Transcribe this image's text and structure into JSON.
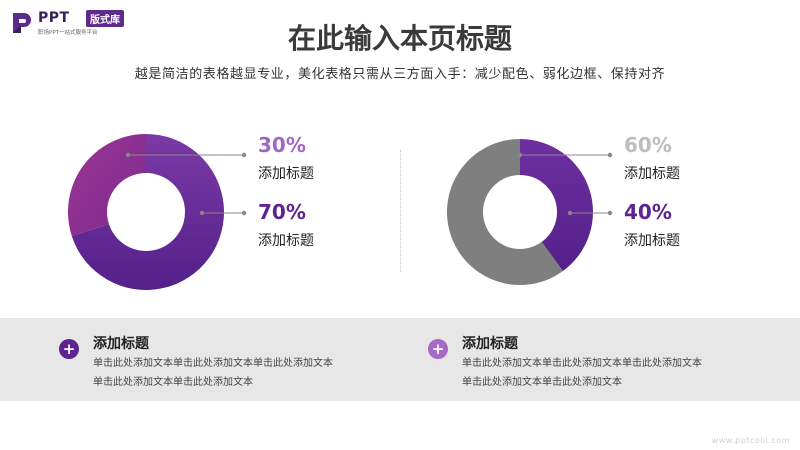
{
  "logo": {
    "name": "PPT",
    "badge": "版式库",
    "tagline": "职场PPT一站式服务平台"
  },
  "header": {
    "title": "在此输入本页标题",
    "subtitle": "越是简洁的表格越显专业，美化表格只需从三方面入手：减少配色、弱化边框、保持对齐"
  },
  "colors": {
    "purple_dark": "#5e2390",
    "purple_mid": "#7b3aa6",
    "magenta": "#8e2f8a",
    "violet_light": "#a569c6",
    "gray_slice": "#7f7f7f",
    "gray_text": "#bdbdbd",
    "band": "#e7e7e7"
  },
  "chart_data": [
    {
      "type": "pie",
      "donut": true,
      "slices": [
        {
          "label": "添加标题",
          "value": 30,
          "display": "30%",
          "color": "#8e2f8a"
        },
        {
          "label": "添加标题",
          "value": 70,
          "display": "70%",
          "color": "#5e2390"
        }
      ],
      "legend": "right"
    },
    {
      "type": "pie",
      "donut": true,
      "slices": [
        {
          "label": "添加标题",
          "value": 60,
          "display": "60%",
          "color": "#7f7f7f"
        },
        {
          "label": "添加标题",
          "value": 40,
          "display": "40%",
          "color": "#5e2390"
        }
      ],
      "legend": "right"
    }
  ],
  "cards": [
    {
      "title": "添加标题",
      "body": "单击此处添加文本单击此处添加文本单击此处添加文本单击此处添加文本单击此处添加文本",
      "icon": "plus-icon",
      "color": "#5e2390"
    },
    {
      "title": "添加标题",
      "body": "单击此处添加文本单击此处添加文本单击此处添加文本单击此处添加文本单击此处添加文本",
      "icon": "plus-icon",
      "color": "#a569c6"
    }
  ],
  "watermark": "www.pptcool.com"
}
